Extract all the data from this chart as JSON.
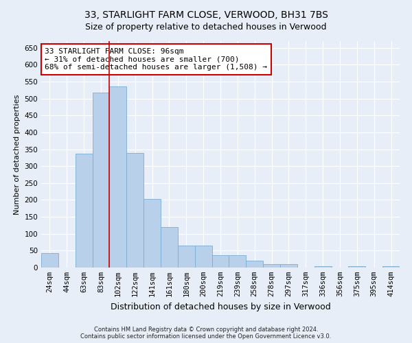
{
  "title": "33, STARLIGHT FARM CLOSE, VERWOOD, BH31 7BS",
  "subtitle": "Size of property relative to detached houses in Verwood",
  "xlabel": "Distribution of detached houses by size in Verwood",
  "ylabel": "Number of detached properties",
  "bar_labels": [
    "24sqm",
    "44sqm",
    "63sqm",
    "83sqm",
    "102sqm",
    "122sqm",
    "141sqm",
    "161sqm",
    "180sqm",
    "200sqm",
    "219sqm",
    "239sqm",
    "258sqm",
    "278sqm",
    "297sqm",
    "317sqm",
    "336sqm",
    "356sqm",
    "375sqm",
    "395sqm",
    "414sqm"
  ],
  "bar_values": [
    42,
    0,
    338,
    518,
    535,
    340,
    203,
    120,
    65,
    65,
    37,
    37,
    20,
    10,
    10,
    0,
    5,
    0,
    5,
    0,
    5
  ],
  "bar_color": "#b8d0ea",
  "bar_edgecolor": "#7aadd4",
  "vline_pos": 3.5,
  "vline_color": "#cc0000",
  "annotation_text": "33 STARLIGHT FARM CLOSE: 96sqm\n← 31% of detached houses are smaller (700)\n68% of semi-detached houses are larger (1,508) →",
  "annotation_box_facecolor": "#ffffff",
  "annotation_box_edgecolor": "#cc0000",
  "ylim": [
    0,
    670
  ],
  "yticks": [
    0,
    50,
    100,
    150,
    200,
    250,
    300,
    350,
    400,
    450,
    500,
    550,
    600,
    650
  ],
  "footer": "Contains HM Land Registry data © Crown copyright and database right 2024.\nContains public sector information licensed under the Open Government Licence v3.0.",
  "background_color": "#e8eef8",
  "grid_color": "#ffffff",
  "title_fontsize": 10,
  "subtitle_fontsize": 9,
  "ylabel_fontsize": 8,
  "xlabel_fontsize": 9,
  "tick_fontsize": 7.5,
  "annotation_fontsize": 8,
  "footer_fontsize": 6
}
